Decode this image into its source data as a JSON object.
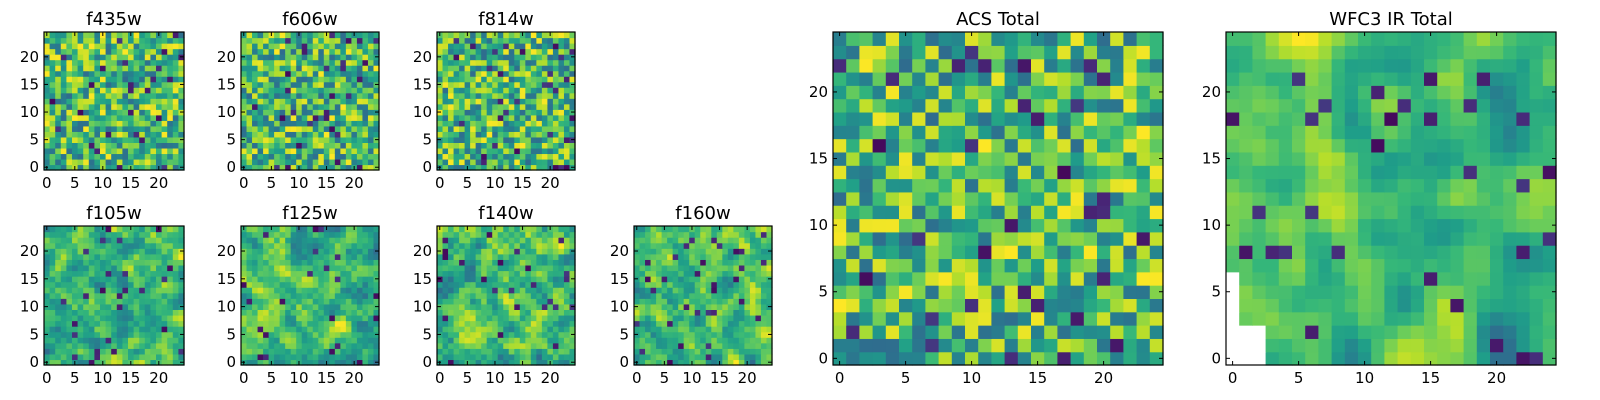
{
  "chart_data": [
    {
      "type": "heatmap",
      "title": "f435w",
      "xticks": [
        "0",
        "5",
        "10",
        "15",
        "20"
      ],
      "yticks": [
        "0",
        "5",
        "10",
        "15",
        "20"
      ],
      "xlim": [
        0,
        24
      ],
      "ylim": [
        0,
        24
      ],
      "colormap": "viridis",
      "seed": 11,
      "smooth": 0,
      "white_mask": false
    },
    {
      "type": "heatmap",
      "title": "f606w",
      "xticks": [
        "0",
        "5",
        "10",
        "15",
        "20"
      ],
      "yticks": [
        "0",
        "5",
        "10",
        "15",
        "20"
      ],
      "xlim": [
        0,
        24
      ],
      "ylim": [
        0,
        24
      ],
      "colormap": "viridis",
      "seed": 23,
      "smooth": 0,
      "white_mask": false
    },
    {
      "type": "heatmap",
      "title": "f814w",
      "xticks": [
        "0",
        "5",
        "10",
        "15",
        "20"
      ],
      "yticks": [
        "0",
        "5",
        "10",
        "15",
        "20"
      ],
      "xlim": [
        0,
        24
      ],
      "ylim": [
        0,
        24
      ],
      "colormap": "viridis",
      "seed": 37,
      "smooth": 0,
      "white_mask": false
    },
    {
      "type": "heatmap",
      "title": "f105w",
      "xticks": [
        "0",
        "5",
        "10",
        "15",
        "20"
      ],
      "yticks": [
        "0",
        "5",
        "10",
        "15",
        "20"
      ],
      "xlim": [
        0,
        24
      ],
      "ylim": [
        0,
        24
      ],
      "colormap": "viridis",
      "seed": 41,
      "smooth": 1,
      "white_mask": false
    },
    {
      "type": "heatmap",
      "title": "f125w",
      "xticks": [
        "0",
        "5",
        "10",
        "15",
        "20"
      ],
      "yticks": [
        "0",
        "5",
        "10",
        "15",
        "20"
      ],
      "xlim": [
        0,
        24
      ],
      "ylim": [
        0,
        24
      ],
      "colormap": "viridis",
      "seed": 53,
      "smooth": 1,
      "white_mask": false
    },
    {
      "type": "heatmap",
      "title": "f140w",
      "xticks": [
        "0",
        "5",
        "10",
        "15",
        "20"
      ],
      "yticks": [
        "0",
        "5",
        "10",
        "15",
        "20"
      ],
      "xlim": [
        0,
        24
      ],
      "ylim": [
        0,
        24
      ],
      "colormap": "viridis",
      "seed": 67,
      "smooth": 1,
      "white_mask": false
    },
    {
      "type": "heatmap",
      "title": "f160w",
      "xticks": [
        "0",
        "5",
        "10",
        "15",
        "20"
      ],
      "yticks": [
        "0",
        "5",
        "10",
        "15",
        "20"
      ],
      "xlim": [
        0,
        24
      ],
      "ylim": [
        0,
        24
      ],
      "colormap": "viridis",
      "seed": 79,
      "smooth": 1,
      "white_mask": false
    },
    {
      "type": "heatmap",
      "title": "ACS Total",
      "xticks": [
        "0",
        "5",
        "10",
        "15",
        "20"
      ],
      "yticks": [
        "0",
        "5",
        "10",
        "15",
        "20"
      ],
      "xlim": [
        0,
        24
      ],
      "ylim": [
        0,
        24
      ],
      "colormap": "viridis",
      "seed": 97,
      "smooth": 0,
      "white_mask": false
    },
    {
      "type": "heatmap",
      "title": "WFC3 IR Total",
      "xticks": [
        "0",
        "5",
        "10",
        "15",
        "20"
      ],
      "yticks": [
        "0",
        "5",
        "10",
        "15",
        "20"
      ],
      "xlim": [
        0,
        24
      ],
      "ylim": [
        0,
        24
      ],
      "colormap": "viridis",
      "seed": 131,
      "smooth": 2,
      "white_mask": true
    }
  ]
}
